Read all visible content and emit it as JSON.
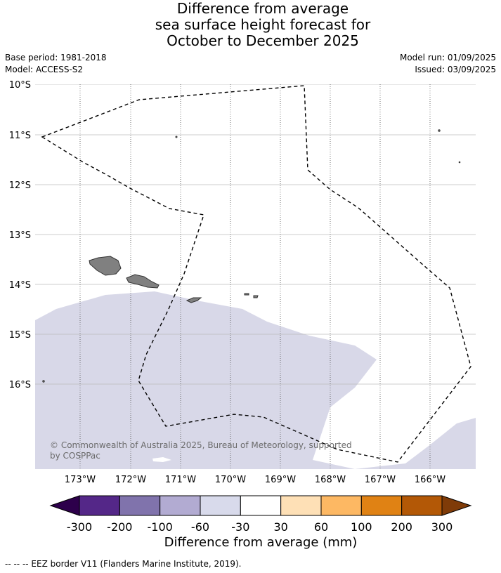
{
  "title": {
    "line1": "Difference from average",
    "line2": "sea surface height forecast for",
    "line3": "October to December 2025"
  },
  "meta": {
    "base_period": "Base period: 1981-2018",
    "model": "Model: ACCESS-S2",
    "model_run": "Model run: 01/09/2025",
    "issued": "Issued: 03/09/2025"
  },
  "map": {
    "lat_labels": [
      "10°S",
      "11°S",
      "12°S",
      "13°S",
      "14°S",
      "15°S",
      "16°S"
    ],
    "lon_labels": [
      "173°W",
      "172°W",
      "171°W",
      "170°W",
      "169°W",
      "168°W",
      "167°W",
      "166°W"
    ],
    "copyright_line1": "© Commonwealth of Australia 2025, Bureau of Meteorology, supported",
    "copyright_line2": "by COSPPac",
    "colors": {
      "land": "#808080",
      "anomaly_fill": "#d8d8e8",
      "grid": "#bbbbbb",
      "eez": "#000000"
    }
  },
  "legend": {
    "title": "Difference from average (mm)",
    "ticks": [
      "-300",
      "-200",
      "-100",
      "-60",
      "-30",
      "30",
      "60",
      "100",
      "200",
      "300"
    ],
    "colors": [
      "#2d004b",
      "#542788",
      "#8073ac",
      "#b2abd2",
      "#d8daeb",
      "#ffffff",
      "#fee0b6",
      "#fdb863",
      "#e08214",
      "#b35806",
      "#7f3b08"
    ]
  },
  "footer": "--  --  -- EEZ border V11 (Flanders Marine Institute, 2019)."
}
